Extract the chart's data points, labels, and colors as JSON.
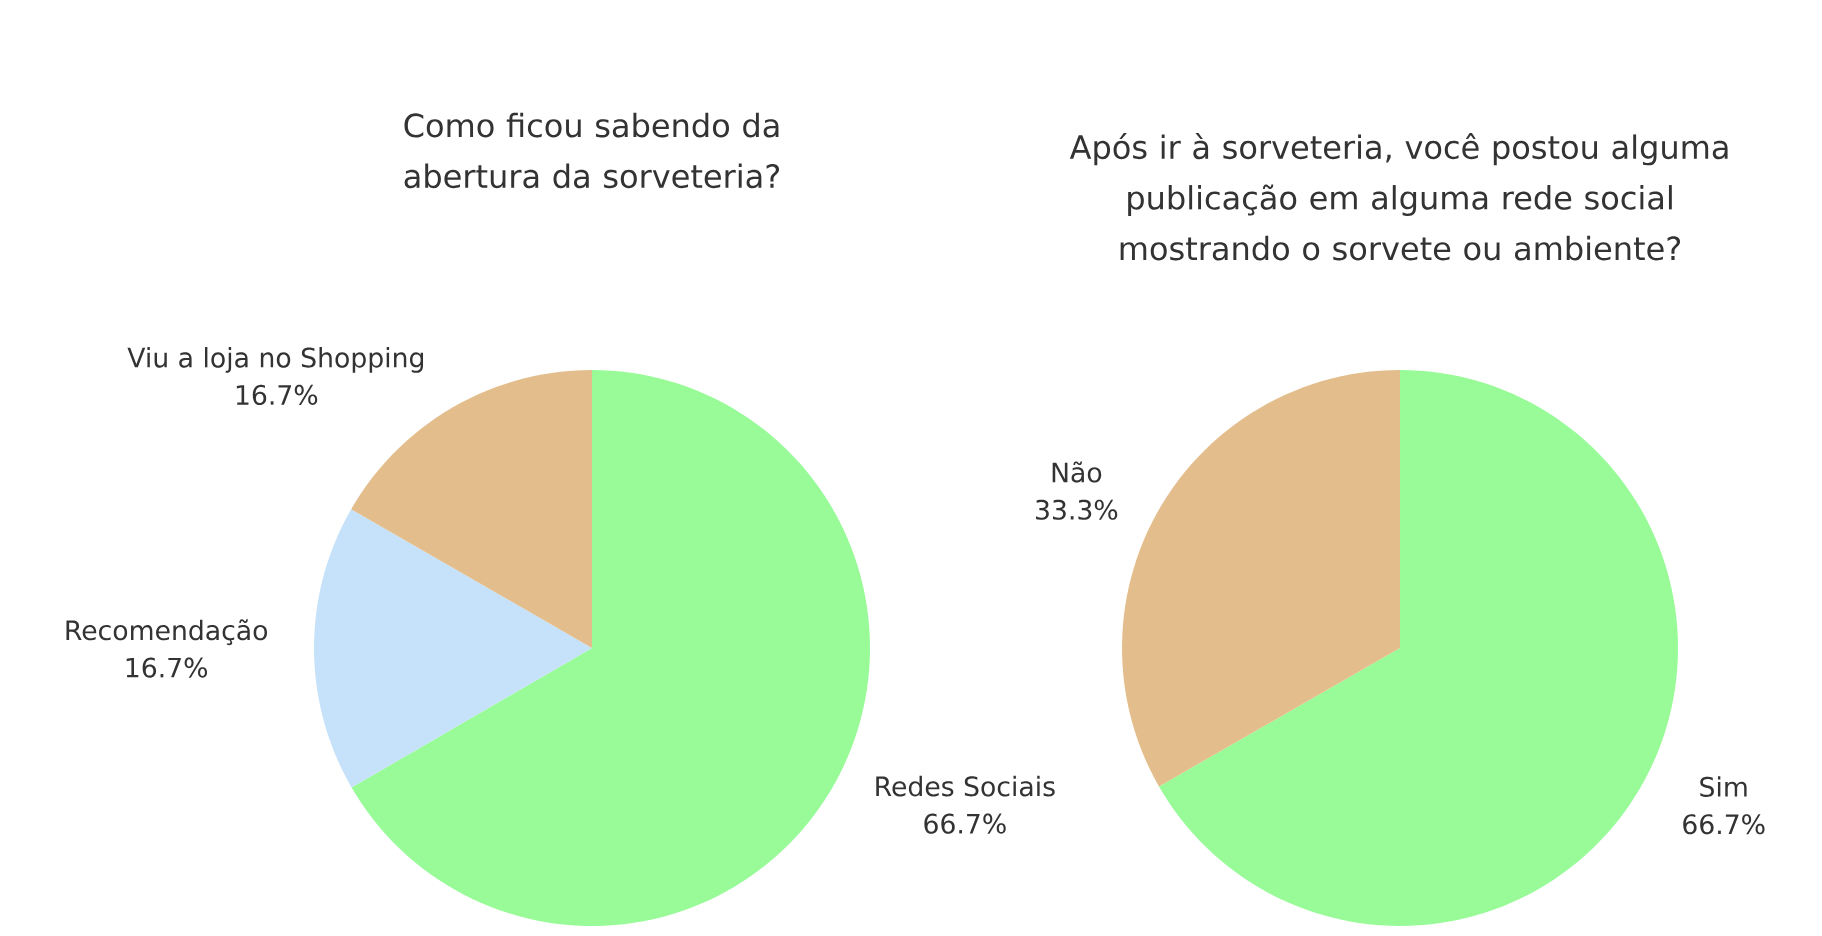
{
  "chart_data": [
    {
      "type": "pie",
      "title": "Como ficou sabendo da abertura da sorveteria?",
      "categories": [
        "Redes Sociais",
        "Recomendação",
        "Viu a loja no Shopping"
      ],
      "values": [
        66.7,
        16.7,
        16.7
      ],
      "value_labels": [
        "66.7%",
        "16.7%",
        "16.7%"
      ],
      "colors": [
        "#98fb98",
        "#c6e2fa",
        "#e3bd8c"
      ]
    },
    {
      "type": "pie",
      "title": "Após ir à sorveteria, você postou alguma publicação em alguma rede social mostrando o sorvete ou ambiente?",
      "categories": [
        "Sim",
        "Não"
      ],
      "values": [
        66.7,
        33.3
      ],
      "value_labels": [
        "66.7%",
        "33.3%"
      ],
      "colors": [
        "#98fb98",
        "#e3bd8c"
      ]
    }
  ]
}
